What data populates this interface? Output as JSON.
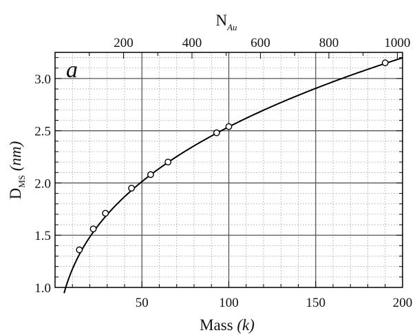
{
  "chart_data": {
    "type": "scatter",
    "panel_label": "a",
    "xlabel": {
      "main": "Mass ",
      "unit": "(k)"
    },
    "ylabel": {
      "main": "D",
      "sub": "MS",
      "unit": " (nm)"
    },
    "top_axis_label": {
      "main": "N",
      "sub": "Au"
    },
    "xlim": [
      0,
      200
    ],
    "ylim": [
      1.0,
      3.25
    ],
    "x_ticks": [
      "50",
      "100",
      "150",
      "200"
    ],
    "x_tick_values": [
      50,
      100,
      150,
      200
    ],
    "y_ticks": [
      "1.0",
      "1.5",
      "2.0",
      "2.5",
      "3.0"
    ],
    "y_tick_values": [
      1.0,
      1.5,
      2.0,
      2.5,
      3.0
    ],
    "top_ticks": [
      "200",
      "400",
      "600",
      "800",
      "1000"
    ],
    "top_tick_values": [
      200,
      400,
      600,
      800,
      1000
    ],
    "top_axis_scale_mass_per_atom": 0.197,
    "grid": "major and minor",
    "series": [
      {
        "points": [
          {
            "x": 14,
            "y": 1.36
          },
          {
            "x": 22,
            "y": 1.56
          },
          {
            "x": 29,
            "y": 1.71
          },
          {
            "x": 44,
            "y": 1.95
          },
          {
            "x": 55,
            "y": 2.08
          },
          {
            "x": 65,
            "y": 2.2
          },
          {
            "x": 93,
            "y": 2.48
          },
          {
            "x": 100,
            "y": 2.54
          },
          {
            "x": 190,
            "y": 3.15
          }
        ]
      }
    ],
    "fit_curve": {
      "form": "y = a * x^b",
      "a": 0.545,
      "b": 0.334,
      "x_start": 5.2,
      "x_end": 200
    }
  },
  "colors": {
    "line": "#000000",
    "major_grid": "#555555",
    "minor_grid": "#9a9a9a",
    "marker_fill": "#ffffff"
  }
}
